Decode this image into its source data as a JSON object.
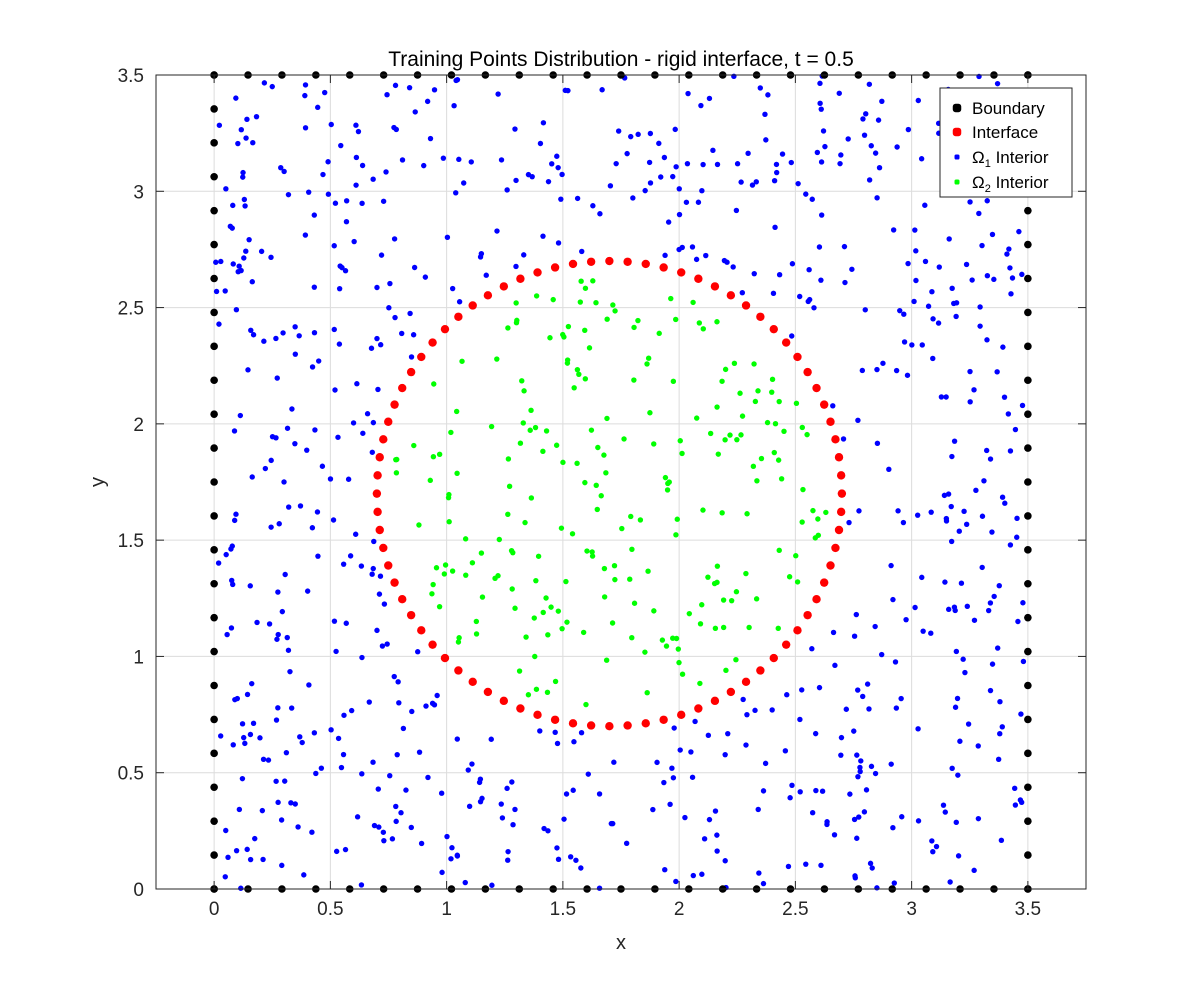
{
  "chart_data": {
    "type": "scatter",
    "title": "Training Points Distribution - rigid interface, t = 0.5",
    "xlabel": "x",
    "ylabel": "y",
    "xlim": [
      -0.25,
      3.75
    ],
    "ylim": [
      0,
      3.5
    ],
    "xticks": [
      "0",
      "0.5",
      "1",
      "1.5",
      "2",
      "2.5",
      "3",
      "3.5"
    ],
    "yticks": [
      "0",
      "0.5",
      "1",
      "1.5",
      "2",
      "2.5",
      "3",
      "3.5"
    ],
    "grid": true,
    "legend_position": "top-right",
    "series": [
      {
        "name": "Boundary",
        "sub": "",
        "color": "#000000",
        "marker": "square-dot",
        "description": "points evenly spaced along the four edges of the square [0, 3.5] x [0, 3.5], spacing about 0.146",
        "points": "computed"
      },
      {
        "name": "Interface",
        "sub": "",
        "color": "#ff0000",
        "marker": "dot",
        "circle": {
          "cx": 1.7,
          "cy": 1.7,
          "r": 1.0
        },
        "count": 80
      },
      {
        "name": " Interior",
        "prefix": "Ω",
        "sub": "1",
        "color": "#0000ff",
        "marker": "dot",
        "description": "random points in the square outside the interface circle",
        "count": 720
      },
      {
        "name": " Interior",
        "prefix": "Ω",
        "sub": "2",
        "color": "#00ff00",
        "marker": "dot",
        "description": "random points inside the interface circle",
        "count": 230
      }
    ]
  }
}
